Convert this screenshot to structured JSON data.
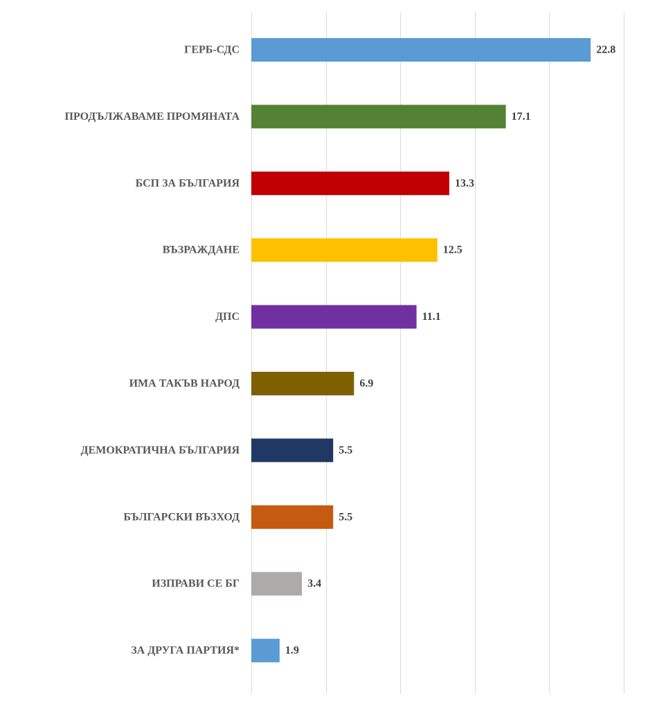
{
  "chart_data": {
    "type": "bar",
    "orientation": "horizontal",
    "title": "",
    "xlabel": "",
    "ylabel": "",
    "xlim": [
      0,
      25
    ],
    "grid": true,
    "legend": "none",
    "categories": [
      "ГЕРБ-СДС",
      "ПРОДЪЛЖАВАМЕ ПРОМЯНАТА",
      "БСП ЗА БЪЛГАРИЯ",
      "ВЪЗРАЖДАНЕ",
      "ДПС",
      "ИМА ТАКЪВ НАРОД",
      "ДЕМОКРАТИЧНА БЪЛГАРИЯ",
      "БЪЛГАРСКИ ВЪЗХОД",
      "ИЗПРАВИ СЕ БГ",
      "ЗА ДРУГА ПАРТИЯ*"
    ],
    "values": [
      22.8,
      17.1,
      13.3,
      12.5,
      11.1,
      6.9,
      5.5,
      5.5,
      3.4,
      1.9
    ],
    "value_labels": [
      "22.8",
      "17.1",
      "13.3",
      "12.5",
      "11.1",
      "6.9",
      "5.5",
      "5.5",
      "3.4",
      "1.9"
    ],
    "colors": [
      "#5b9bd5",
      "#548235",
      "#c00000",
      "#ffc000",
      "#7030a0",
      "#7f6000",
      "#203864",
      "#c55a11",
      "#aeaaaa",
      "#5b9bd5"
    ]
  }
}
